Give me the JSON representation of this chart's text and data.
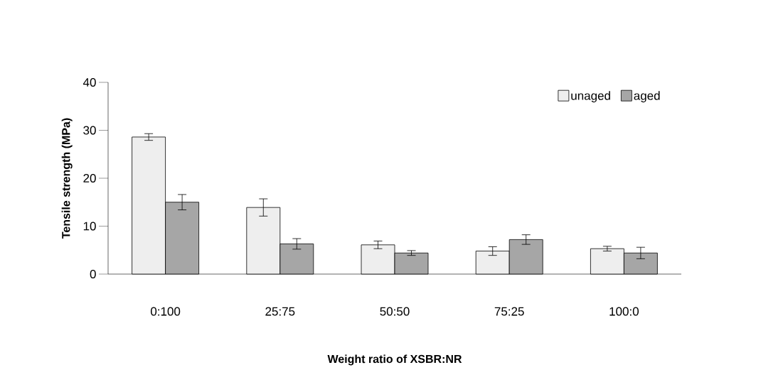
{
  "chart_data": {
    "type": "bar",
    "xlabel": "Weight ratio of XSBR:NR",
    "ylabel": "Tensile strength (MPa)",
    "categories": [
      "0:100",
      "25:75",
      "50:50",
      "75:25",
      "100:0"
    ],
    "series": [
      {
        "name": "unaged",
        "color": "#eeeeee",
        "values": [
          28.6,
          13.9,
          6.1,
          4.8,
          5.3
        ],
        "errors": [
          0.7,
          1.8,
          0.8,
          0.9,
          0.5
        ]
      },
      {
        "name": "aged",
        "color": "#a6a6a6",
        "values": [
          15.0,
          6.3,
          4.4,
          7.2,
          4.4
        ],
        "errors": [
          1.6,
          1.1,
          0.5,
          1.0,
          1.2
        ]
      }
    ],
    "ylim": [
      0,
      40
    ],
    "yticks": [
      0,
      10,
      20,
      30,
      40
    ],
    "grid": false,
    "legend": "top right"
  }
}
